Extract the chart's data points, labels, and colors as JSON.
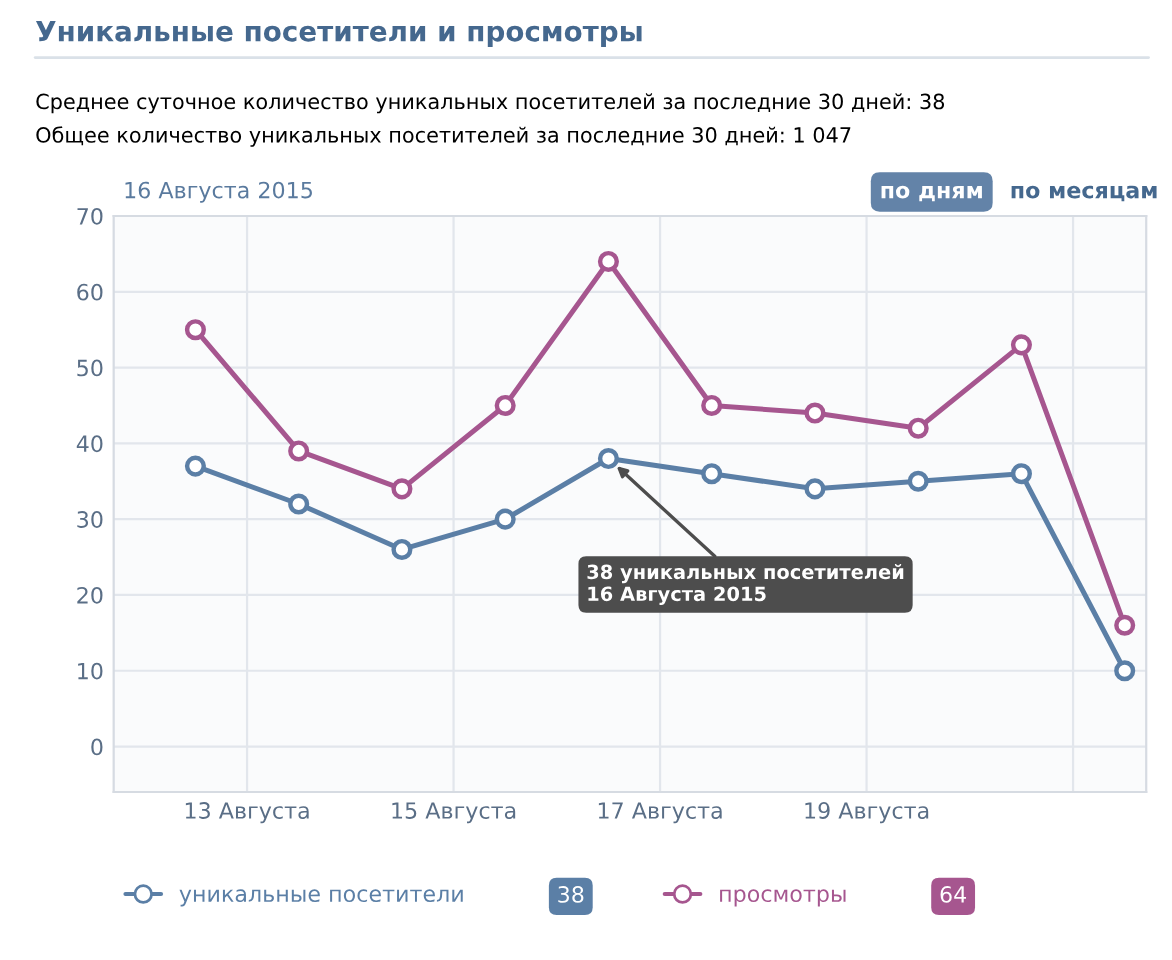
{
  "chart_data": {
    "type": "line",
    "title": "Уникальные посетители и просмотры",
    "subtitle": "Среднее суточное количество уникальных посетителей за последние 30 дней: 38\nОбщее количество уникальных посетителей за последние 30 дней: 1 047",
    "x": [
      "2015-08-12T12:00",
      "2015-08-13T12:00",
      "2015-08-14T12:00",
      "2015-08-15T12:00",
      "2015-08-16T12:00",
      "2015-08-17T12:00",
      "2015-08-18T12:00",
      "2015-08-19T12:00",
      "2015-08-20T12:00",
      "2015-08-21T12:00"
    ],
    "series": [
      {
        "name": "уникальные посетители",
        "color": "#5b7fa6",
        "values": [
          37,
          32,
          26,
          30,
          38,
          36,
          34,
          35,
          36,
          10
        ]
      },
      {
        "name": "просмотры",
        "color": "#a6568f",
        "values": [
          55,
          39,
          34,
          45,
          64,
          45,
          44,
          42,
          53,
          16
        ]
      }
    ],
    "xlim": [
      "2015-08-11T17:00",
      "2015-08-21T17:00"
    ],
    "xticks": [
      {
        "value": "2015-08-13",
        "label": "13 Августа"
      },
      {
        "value": "2015-08-15",
        "label": "15 Августа"
      },
      {
        "value": "2015-08-17",
        "label": "17 Августа"
      },
      {
        "value": "2015-08-19",
        "label": "19 Августа"
      },
      {
        "value": "2015-08-21",
        "label": null
      }
    ],
    "ylim": [
      -6,
      70
    ],
    "yticks": [
      0,
      10,
      20,
      30,
      40,
      50,
      60,
      70
    ],
    "grid": true,
    "marker": "circle",
    "line_style": "solid",
    "legend": "bottom",
    "annotations": [
      "16 Августа 2015",
      "по дням",
      "по месяцам",
      "38",
      "64",
      {
        "text": "38 уникальных посетителей\n16 Августа 2015",
        "x": "2015-08-16T12:00",
        "y": 38
      }
    ]
  }
}
